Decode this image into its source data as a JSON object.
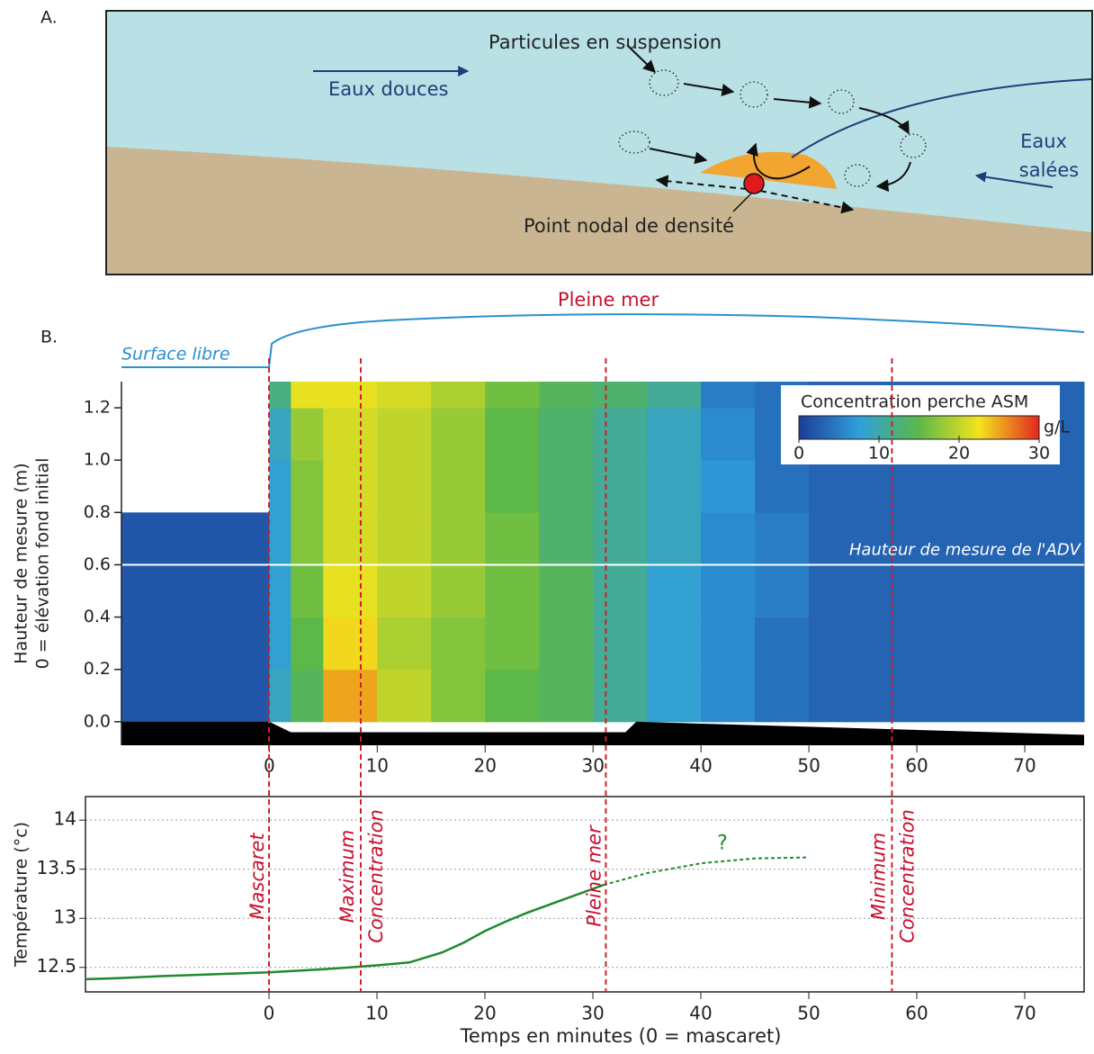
{
  "diagram": {
    "label": "A.",
    "particles": "Particules en suspension",
    "freshwater": "Eaux douces",
    "saltwater": [
      "Eaux",
      "salées"
    ],
    "nodal_point": "Point nodal de densité"
  },
  "panel_b_label": "B.",
  "surface_label": "Surface libre",
  "high_tide_label": "Pleine mer",
  "chart_data": [
    {
      "type": "heatmap",
      "ylabel": [
        "Hauteur de mesure (m)",
        "0 = élévation fond initial"
      ],
      "xlim": [
        -13.7,
        75.5
      ],
      "xticks": [
        0,
        10,
        20,
        30,
        40,
        50,
        60,
        70
      ],
      "ylim": [
        -0.09,
        1.3
      ],
      "yticks": [
        {
          "value": 0,
          "label": "0.0"
        },
        0.2,
        0.4,
        0.6,
        0.8,
        {
          "value": 1,
          "label": "1.0"
        },
        1.2
      ],
      "x_bins": [
        -13.7,
        0,
        2,
        5,
        10,
        15,
        20,
        25,
        30,
        35,
        40,
        45,
        50,
        60,
        75.5
      ],
      "y_bins": [
        0,
        0.2,
        0.4,
        0.6,
        0.8,
        1,
        1.2,
        1.3
      ],
      "values": [
        [
          2,
          9,
          14,
          25,
          20,
          17,
          15,
          14,
          11,
          8,
          6,
          4,
          3,
          3
        ],
        [
          2,
          8,
          15,
          23,
          19,
          17,
          16,
          14,
          11,
          8,
          6,
          4,
          3,
          3
        ],
        [
          2,
          8,
          16,
          22,
          20,
          18,
          16,
          14,
          11,
          8,
          6,
          5,
          3,
          3
        ],
        [
          2,
          8,
          17,
          21,
          20,
          18,
          16,
          13,
          11,
          9,
          6,
          5,
          3,
          3
        ],
        [
          null,
          8,
          17,
          21,
          20,
          18,
          15,
          13,
          11,
          9,
          7,
          4,
          3,
          3
        ],
        [
          null,
          9,
          18,
          21,
          20,
          18,
          15,
          13,
          11,
          9,
          6,
          4,
          3,
          3
        ],
        [
          null,
          12,
          22,
          22,
          21,
          19,
          16,
          14,
          13,
          11,
          5,
          4,
          3,
          3
        ]
      ],
      "colorbar": {
        "title": "Concentration perche ASM",
        "unit": "g/L",
        "clim": [
          0,
          30
        ],
        "ticks": [
          0,
          10,
          20,
          30
        ],
        "colormap": [
          "#1d3c97",
          "#2f9fdc",
          "#5cb848",
          "#f2e41e",
          "#e5261f"
        ]
      },
      "annotation": {
        "text": "Hauteur de mesure de l'ADV",
        "y": 0.6
      }
    },
    {
      "type": "line",
      "xlabel": "Temps en minutes (0 = mascaret)",
      "ylabel": "Température (°c)",
      "xlim": [
        -17,
        75.5
      ],
      "xticks": [
        0,
        10,
        20,
        30,
        40,
        50,
        60,
        70
      ],
      "ylim": [
        12.25,
        14.24
      ],
      "yticks": [
        12.5,
        13,
        13.5,
        14
      ],
      "grid": true,
      "series": [
        {
          "color": "#1e8a2e",
          "dash": false,
          "x": [
            -17,
            -14,
            -10,
            -5,
            0,
            5,
            10,
            13,
            16,
            18,
            20,
            22,
            24,
            26,
            28,
            30,
            31
          ],
          "values": [
            12.38,
            12.39,
            12.41,
            12.43,
            12.45,
            12.48,
            12.52,
            12.55,
            12.65,
            12.75,
            12.87,
            12.97,
            13.06,
            13.14,
            13.22,
            13.3,
            13.34
          ]
        },
        {
          "color": "#1e8a2e",
          "dash": true,
          "x": [
            31,
            35,
            40,
            45,
            50
          ],
          "values": [
            13.34,
            13.46,
            13.56,
            13.61,
            13.62
          ]
        }
      ],
      "annotation": {
        "text": "?",
        "x": 42,
        "y": 13.76
      },
      "markers": [
        {
          "x": 0,
          "label": [
            "Mascaret"
          ]
        },
        {
          "x": 8.5,
          "label": [
            "Maximum",
            "Concentration"
          ]
        },
        {
          "x": 31.2,
          "label": [
            "Pleine mer"
          ]
        },
        {
          "x": 57.7,
          "label": [
            "Minimum",
            "Concentration"
          ]
        }
      ]
    }
  ]
}
